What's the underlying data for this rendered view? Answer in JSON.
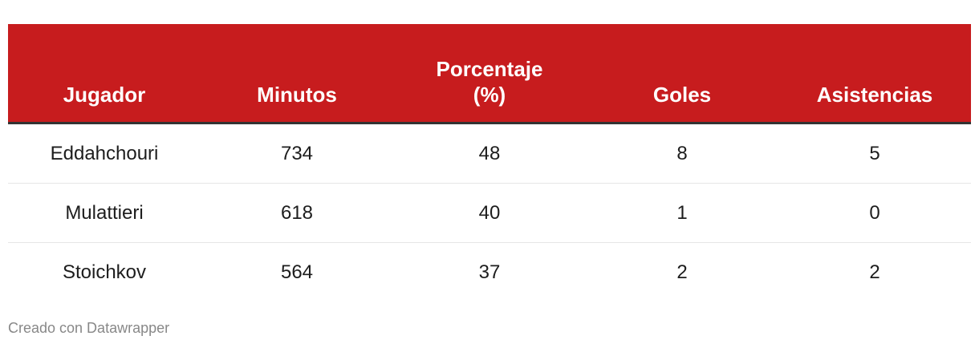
{
  "table": {
    "headers": [
      "Jugador",
      "Minutos",
      "Porcentaje (%)",
      "Goles",
      "Asistencias"
    ],
    "rows": [
      [
        "Eddahchouri",
        "734",
        "48",
        "8",
        "5"
      ],
      [
        "Mulattieri",
        "618",
        "40",
        "1",
        "0"
      ],
      [
        "Stoichkov",
        "564",
        "37",
        "2",
        "2"
      ]
    ]
  },
  "footer": "Creado con Datawrapper",
  "colors": {
    "header_bg": "#c71c1e",
    "header_text": "#ffffff",
    "header_border": "#333333"
  }
}
